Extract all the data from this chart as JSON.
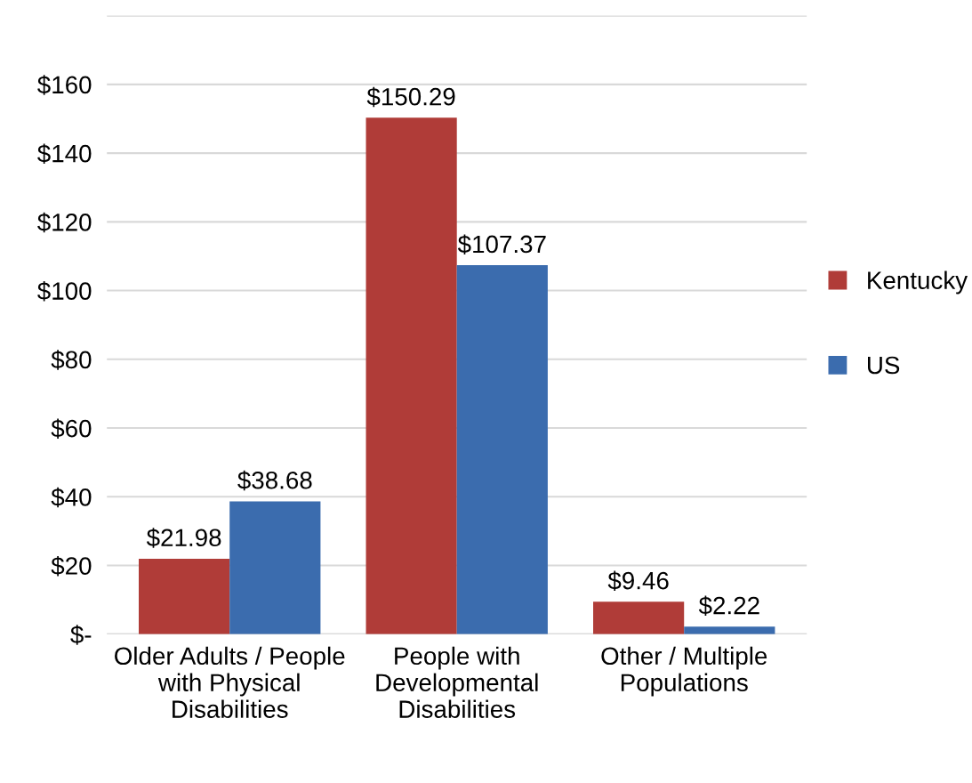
{
  "chart_data": {
    "type": "bar",
    "categories": [
      "Older Adults / People with Physical Disabilities",
      "People with Developmental Disabilities",
      "Other / Multiple Populations"
    ],
    "series": [
      {
        "name": "Kentucky",
        "color": "#b03c38",
        "values": [
          21.98,
          150.29,
          9.46
        ],
        "value_labels": [
          "$21.98",
          "$150.29",
          "$9.46"
        ]
      },
      {
        "name": "US",
        "color": "#3b6cae",
        "values": [
          38.68,
          107.37,
          2.22
        ],
        "value_labels": [
          "$38.68",
          "$107.37",
          "$2.22"
        ]
      }
    ],
    "ylim": [
      0,
      180
    ],
    "yticks": [
      {
        "value": 0,
        "label": "$-"
      },
      {
        "value": 20,
        "label": "$20"
      },
      {
        "value": 40,
        "label": "$40"
      },
      {
        "value": 60,
        "label": "$60"
      },
      {
        "value": 80,
        "label": "$80"
      },
      {
        "value": 100,
        "label": "$100"
      },
      {
        "value": 120,
        "label": "$120"
      },
      {
        "value": 140,
        "label": "$140"
      },
      {
        "value": 160,
        "label": "$160"
      },
      {
        "value": 180,
        "label": null
      }
    ],
    "grid": "y",
    "legend": "right"
  }
}
